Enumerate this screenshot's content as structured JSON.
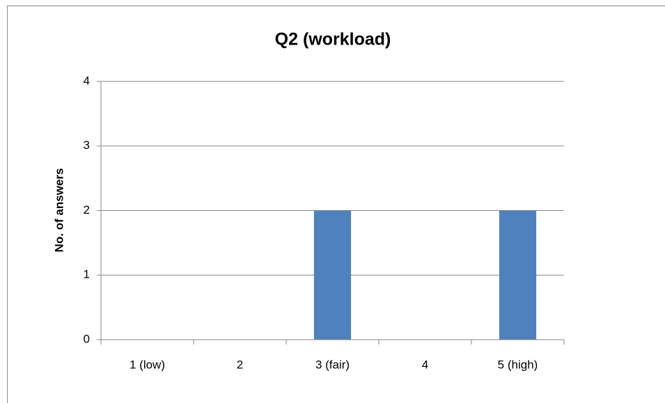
{
  "chart_data": {
    "type": "bar",
    "title": "Q2 (workload)",
    "y_label": "No. of answers",
    "categories": [
      "1 (low)",
      "2",
      "3 (fair)",
      "4",
      "5 (high)"
    ],
    "values": [
      0,
      0,
      2,
      0,
      2
    ],
    "color": "#4f81bd",
    "ylim": [
      0,
      4
    ],
    "yticks": [
      0,
      1,
      2,
      3,
      4
    ],
    "grid": true
  }
}
